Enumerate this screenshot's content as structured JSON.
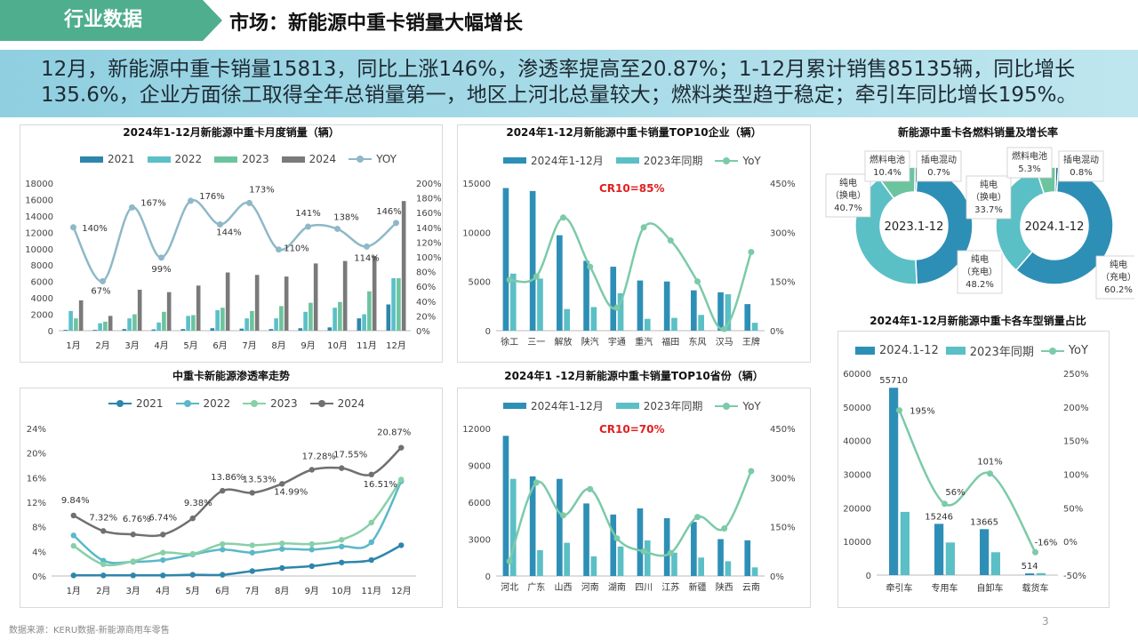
{
  "header": {
    "tag": "行业数据",
    "title": "市场：新能源中重卡销量大幅增长"
  },
  "summary": "12月，新能源中重卡销量15813，同比上涨146%，渗透率提高至20.87%；1-12月累计销售85135辆，同比增长135.6%，企业方面徐工取得全年总销量第一，地区上河北总量较大；燃料类型趋于稳定；牵引车同比增长195%。",
  "footer": {
    "source": "数据来源：KERU数据-新能源商用车零售",
    "page": "3"
  },
  "colors": {
    "c2021": "#2e86ab",
    "c2022": "#5bc0c8",
    "c2023": "#6cc49e",
    "c2024": "#7a7a7a",
    "yoy": "#8fb8c8",
    "bar_a": "#2e8fb6",
    "bar_b": "#5bbfc6",
    "line_c": "#7ccaa8",
    "pen2021": "#2e86ab",
    "pen2022": "#5bb8c8",
    "pen2023": "#88d0a8",
    "pen2024": "#707070"
  },
  "chart_data": [
    {
      "id": "monthly",
      "type": "bar",
      "title": "2024年1-12月新能源中重卡月度销量（辆）",
      "categories": [
        "1月",
        "2月",
        "3月",
        "4月",
        "5月",
        "6月",
        "7月",
        "8月",
        "9月",
        "10月",
        "11月",
        "12月"
      ],
      "series": [
        {
          "name": "2021",
          "values": [
            100,
            100,
            200,
            150,
            200,
            300,
            250,
            200,
            300,
            400,
            1500,
            3200
          ]
        },
        {
          "name": "2022",
          "values": [
            2400,
            900,
            1500,
            1000,
            1800,
            2500,
            1500,
            1500,
            2300,
            2800,
            2000,
            6400
          ]
        },
        {
          "name": "2023",
          "values": [
            1500,
            1100,
            2000,
            2300,
            1900,
            2800,
            2400,
            3000,
            3400,
            3500,
            4800,
            6400
          ]
        },
        {
          "name": "2024",
          "values": [
            3700,
            1800,
            5000,
            4700,
            5500,
            7100,
            6800,
            6600,
            8200,
            8500,
            9100,
            15813
          ]
        }
      ],
      "yoy": {
        "name": "YOY",
        "values": [
          140,
          67,
          167,
          99,
          176,
          144,
          173,
          110,
          141,
          138,
          114,
          146
        ],
        "labels": [
          "140%",
          "67%",
          "167%",
          "99%",
          "176%",
          "144%",
          "173%",
          "110%",
          "141%",
          "138%",
          "114%",
          "146%"
        ]
      },
      "ylim": [
        0,
        18000
      ],
      "yticks": [
        "0",
        "2000",
        "4000",
        "6000",
        "8000",
        "10000",
        "12000",
        "14000",
        "16000",
        "18000"
      ],
      "y2lim": [
        0,
        200
      ],
      "y2ticks": [
        "0%",
        "20%",
        "40%",
        "60%",
        "80%",
        "100%",
        "120%",
        "140%",
        "160%",
        "180%",
        "200%"
      ]
    },
    {
      "id": "companies",
      "type": "bar",
      "title": "2024年1-12月新能源中重卡销量TOP10企业（辆）",
      "annotation": "CR10=85%",
      "categories": [
        "徐工",
        "三一",
        "解放",
        "陕汽",
        "宇通",
        "重汽",
        "福田",
        "东风",
        "汉马",
        "王牌"
      ],
      "series": [
        {
          "name": "2024年1-12月",
          "values": [
            14500,
            14200,
            9700,
            7100,
            6500,
            5100,
            5000,
            4100,
            3900,
            2700
          ]
        },
        {
          "name": "2023年同期",
          "values": [
            5800,
            5300,
            2200,
            2400,
            3800,
            1200,
            1300,
            1600,
            3700,
            800
          ]
        }
      ],
      "yoy": {
        "name": "YoY",
        "values": [
          155,
          165,
          345,
          195,
          70,
          315,
          275,
          150,
          5,
          240
        ]
      },
      "ylim": [
        0,
        15000
      ],
      "yticks": [
        "0",
        "5000",
        "10000",
        "15000"
      ],
      "y2lim": [
        0,
        450
      ],
      "y2ticks": [
        "0%",
        "150%",
        "300%",
        "450%"
      ]
    },
    {
      "id": "provinces",
      "type": "bar",
      "title": "2024年1 -12月新能源中重卡销量TOP10省份（辆）",
      "annotation": "CR10=70%",
      "categories": [
        "河北",
        "广东",
        "山西",
        "河南",
        "湖南",
        "四川",
        "江苏",
        "新疆",
        "陕西",
        "云南"
      ],
      "series": [
        {
          "name": "2024年1-12月",
          "values": [
            11400,
            8100,
            7900,
            5900,
            5000,
            5500,
            4700,
            4400,
            3000,
            2900
          ]
        },
        {
          "name": "2023年同期",
          "values": [
            7900,
            2100,
            2700,
            1600,
            2400,
            2900,
            1900,
            1500,
            1200,
            700
          ]
        }
      ],
      "yoy": {
        "name": "YoY",
        "values": [
          45,
          285,
          185,
          265,
          115,
          75,
          70,
          180,
          145,
          320
        ]
      },
      "ylim": [
        0,
        12000
      ],
      "yticks": [
        "0",
        "3000",
        "6000",
        "9000",
        "12000"
      ],
      "y2lim": [
        0,
        450
      ],
      "y2ticks": [
        "0%",
        "150%",
        "300%",
        "450%"
      ]
    },
    {
      "id": "penetration",
      "type": "line",
      "title": "中重卡新能源渗透率走势",
      "categories": [
        "1月",
        "2月",
        "3月",
        "4月",
        "5月",
        "6月",
        "7月",
        "8月",
        "9月",
        "10月",
        "11月",
        "12月"
      ],
      "series": [
        {
          "name": "2021",
          "values": [
            0.1,
            0.1,
            0.1,
            0.1,
            0.2,
            0.2,
            0.8,
            1.3,
            1.6,
            2.2,
            2.6,
            5.0
          ]
        },
        {
          "name": "2022",
          "values": [
            6.6,
            2.5,
            2.3,
            2.6,
            3.5,
            4.3,
            3.8,
            4.4,
            4.3,
            4.8,
            5.5,
            15.4
          ]
        },
        {
          "name": "2023",
          "values": [
            4.9,
            1.9,
            2.4,
            3.8,
            3.6,
            5.2,
            5.0,
            5.3,
            5.2,
            5.9,
            8.7,
            15.7
          ]
        },
        {
          "name": "2024",
          "values": [
            9.84,
            7.32,
            6.76,
            6.74,
            9.38,
            13.86,
            13.53,
            14.99,
            17.28,
            17.55,
            16.51,
            20.87
          ]
        }
      ],
      "labels2024": [
        "9.84%",
        "7.32%",
        "6.76%",
        "6.74%",
        "9.38%",
        "13.86%",
        "13.53%",
        "14.99%",
        "17.28%",
        "17.55%",
        "16.51%",
        "20.87%"
      ],
      "ylim": [
        0,
        24
      ],
      "yticks": [
        "0%",
        "4%",
        "8%",
        "12%",
        "16%",
        "20%",
        "24%"
      ]
    },
    {
      "id": "fuel",
      "type": "pie",
      "title": "新能源中重卡各燃料销量及增长率",
      "pies": [
        {
          "center_label": "2023.1-12",
          "slices": [
            {
              "label": "纯电\n（充电）\n48.2%",
              "value": 48.2
            },
            {
              "label": "纯电\n（换电）\n40.7%",
              "value": 40.7
            },
            {
              "label": "燃料电池\n10.4%",
              "value": 10.4
            },
            {
              "label": "插电混动\n0.7%",
              "value": 0.7
            }
          ]
        },
        {
          "center_label": "2024.1-12",
          "slices": [
            {
              "label": "纯电\n（充电）\n60.2%",
              "value": 60.2
            },
            {
              "label": "纯电\n（换电）\n33.7%",
              "value": 33.7
            },
            {
              "label": "燃料电池\n5.3%",
              "value": 5.3
            },
            {
              "label": "插电混动\n0.8%",
              "value": 0.8
            }
          ]
        }
      ]
    },
    {
      "id": "vehicle_types",
      "type": "bar",
      "title": "2024年1-12月新能源中重卡各车型销量占比",
      "categories": [
        "牵引车",
        "专用车",
        "自卸车",
        "载货车"
      ],
      "series": [
        {
          "name": "2024.1-12",
          "values": [
            55710,
            15246,
            13665,
            514
          ],
          "labels": [
            "55710",
            "15246",
            "13665",
            "514"
          ]
        },
        {
          "name": "2023年同期",
          "values": [
            18800,
            9700,
            6800,
            600
          ]
        }
      ],
      "yoy": {
        "name": "YoY",
        "values": [
          195,
          56,
          101,
          -16
        ],
        "labels": [
          "195%",
          "56%",
          "101%",
          "-16%"
        ]
      },
      "ylim": [
        0,
        60000
      ],
      "yticks": [
        "0",
        "10000",
        "20000",
        "30000",
        "40000",
        "50000",
        "60000"
      ],
      "y2lim": [
        -50,
        250
      ],
      "y2ticks": [
        "-50%",
        "0%",
        "50%",
        "100%",
        "150%",
        "200%",
        "250%"
      ]
    }
  ]
}
